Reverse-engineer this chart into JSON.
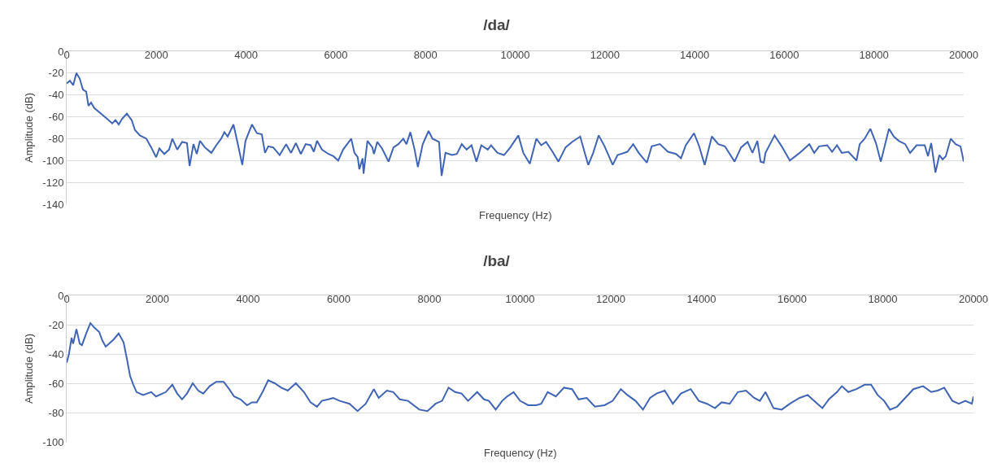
{
  "chart_data": [
    {
      "type": "line",
      "title": "/da/",
      "xlabel": "Frequency (Hz)",
      "ylabel": "Amplitude (dB)",
      "xlim": [
        0,
        20000
      ],
      "xticks": [
        0,
        2000,
        4000,
        6000,
        8000,
        10000,
        12000,
        14000,
        16000,
        18000,
        20000
      ],
      "ylim": [
        -140,
        0
      ],
      "yticks": [
        -140,
        -120,
        -100,
        -80,
        -60,
        -40,
        -20,
        0
      ],
      "grid": "y",
      "marker": "none",
      "line_style": "solid",
      "series": [
        {
          "color": "#3f64b3",
          "x": [
            0,
            72,
            145,
            217,
            290,
            362,
            435,
            486,
            543,
            616,
            761,
            906,
            1015,
            1087,
            1160,
            1232,
            1341,
            1450,
            1522,
            1631,
            1776,
            1885,
            1994,
            2066,
            2175,
            2283,
            2356,
            2465,
            2574,
            2682,
            2740,
            2827,
            2900,
            2972,
            3081,
            3226,
            3335,
            3444,
            3516,
            3589,
            3719,
            3806,
            3915,
            3987,
            4132,
            4241,
            4350,
            4422,
            4495,
            4604,
            4748,
            4893,
            5002,
            5111,
            5220,
            5329,
            5438,
            5510,
            5582,
            5691,
            5836,
            5945,
            6054,
            6163,
            6271,
            6344,
            6416,
            6489,
            6525,
            6597,
            6619,
            6706,
            6815,
            6851,
            6924,
            7032,
            7177,
            7286,
            7395,
            7504,
            7576,
            7663,
            7757,
            7830,
            7939,
            8069,
            8156,
            8301,
            8359,
            8446,
            8591,
            8700,
            8809,
            8917,
            9026,
            9135,
            9244,
            9389,
            9461,
            9606,
            9751,
            9891,
            10072,
            10181,
            10326,
            10471,
            10580,
            10688,
            10833,
            10964,
            11123,
            11268,
            11449,
            11558,
            11630,
            11739,
            11862,
            11993,
            12174,
            12282,
            12500,
            12630,
            12754,
            12935,
            13043,
            13225,
            13406,
            13587,
            13696,
            13804,
            13986,
            14094,
            14225,
            14384,
            14529,
            14674,
            14891,
            15036,
            15181,
            15290,
            15399,
            15471,
            15543,
            15580,
            15783,
            15942,
            16123,
            16341,
            16558,
            16667,
            16775,
            16956,
            17065,
            17174,
            17283,
            17428,
            17609,
            17681,
            17790,
            17920,
            18043,
            18152,
            18333,
            18442,
            18551,
            18696,
            18804,
            18949,
            19130,
            19203,
            19275,
            19370,
            19457,
            19529,
            19601,
            19710,
            19819,
            19928,
            20000
          ],
          "values": [
            -29.5,
            -27,
            -31,
            -20,
            -25,
            -35,
            -37,
            -50,
            -47,
            -52,
            -57,
            -62,
            -66,
            -63,
            -67,
            -62,
            -57,
            -63,
            -72,
            -77,
            -80,
            -88,
            -97,
            -89,
            -94,
            -90,
            -80,
            -90,
            -83,
            -84,
            -105,
            -85,
            -94,
            -82,
            -88,
            -93,
            -86,
            -80,
            -74,
            -78,
            -67,
            -83,
            -104,
            -82,
            -67,
            -75,
            -76,
            -93,
            -87,
            -88,
            -95,
            -85,
            -93,
            -84,
            -94,
            -85,
            -86,
            -92,
            -82,
            -90,
            -94,
            -96,
            -100,
            -90,
            -84,
            -80,
            -93,
            -97,
            -108,
            -98,
            -112,
            -82,
            -88,
            -94,
            -83,
            -89,
            -101,
            -88,
            -85,
            -80,
            -85,
            -74,
            -90,
            -106,
            -85,
            -73,
            -80,
            -83,
            -114,
            -93,
            -95,
            -94,
            -85,
            -90,
            -86,
            -101,
            -86,
            -90,
            -86,
            -93,
            -95,
            -88,
            -77,
            -93,
            -103,
            -80,
            -86,
            -83,
            -92,
            -101,
            -88,
            -83,
            -78,
            -94,
            -104,
            -93,
            -77,
            -87,
            -104,
            -95,
            -92,
            -85,
            -93,
            -102,
            -87,
            -85,
            -92,
            -94,
            -98,
            -86,
            -75,
            -86,
            -104,
            -78,
            -85,
            -87,
            -101,
            -88,
            -83,
            -93,
            -82,
            -101,
            -102,
            -93,
            -77,
            -87,
            -100,
            -93,
            -85,
            -93,
            -87,
            -86,
            -92,
            -86,
            -93,
            -92,
            -100,
            -85,
            -80,
            -71,
            -84,
            -101,
            -71,
            -78,
            -82,
            -85,
            -93,
            -86,
            -86,
            -96,
            -84,
            -111,
            -95,
            -99,
            -96,
            -80,
            -85,
            -87,
            -101
          ]
        }
      ]
    },
    {
      "type": "line",
      "title": "/ba/",
      "xlabel": "Frequency (Hz)",
      "ylabel": "Amplitude (dB)",
      "xlim": [
        0,
        20000
      ],
      "xticks": [
        0,
        2000,
        4000,
        6000,
        8000,
        10000,
        12000,
        14000,
        16000,
        18000,
        20000
      ],
      "ylim": [
        -100,
        0
      ],
      "yticks": [
        -100,
        -80,
        -60,
        -40,
        -20,
        0
      ],
      "grid": "y",
      "marker": "none",
      "line_style": "solid",
      "series": [
        {
          "color": "#3f64b3",
          "x": [
            0,
            50,
            108,
            143,
            215,
            287,
            337,
            430,
            523,
            609,
            717,
            789,
            860,
            932,
            1039,
            1147,
            1254,
            1326,
            1398,
            1470,
            1541,
            1685,
            1864,
            1971,
            2186,
            2330,
            2437,
            2545,
            2652,
            2781,
            2903,
            3011,
            3154,
            3297,
            3462,
            3584,
            3692,
            3835,
            3978,
            4086,
            4194,
            4337,
            4444,
            4588,
            4731,
            4875,
            5054,
            5233,
            5376,
            5520,
            5627,
            5771,
            5878,
            6022,
            6237,
            6416,
            6595,
            6774,
            6882,
            7061,
            7204,
            7348,
            7527,
            7778,
            7957,
            8136,
            8280,
            8423,
            8566,
            8710,
            8853,
            9054,
            9204,
            9312,
            9462,
            9606,
            9713,
            9857,
            10000,
            10179,
            10358,
            10466,
            10609,
            10789,
            10968,
            11147,
            11290,
            11470,
            11649,
            11864,
            12043,
            12222,
            12366,
            12545,
            12710,
            12867,
            13011,
            13190,
            13369,
            13548,
            13763,
            13943,
            14122,
            14301,
            14444,
            14624,
            14803,
            14982,
            15161,
            15290,
            15412,
            15591,
            15771,
            15950,
            16165,
            16344,
            16523,
            16667,
            16810,
            16989,
            17097,
            17240,
            17419,
            17599,
            17742,
            17885,
            18029,
            18158,
            18315,
            18495,
            18674,
            18889,
            19068,
            19211,
            19355,
            19534,
            19677,
            19821,
            19964,
            20000
          ],
          "values": [
            -46,
            -40,
            -29,
            -33,
            -23,
            -33,
            -34,
            -26,
            -19,
            -22,
            -25,
            -31,
            -35,
            -33,
            -30,
            -26,
            -32,
            -43,
            -55,
            -61,
            -66,
            -68,
            -66,
            -69,
            -66,
            -61,
            -67,
            -71,
            -67,
            -60,
            -65,
            -67,
            -62,
            -59,
            -59,
            -64,
            -69,
            -71,
            -75,
            -73,
            -73,
            -65,
            -58,
            -60,
            -63,
            -65,
            -60,
            -66,
            -73,
            -76,
            -72,
            -71,
            -70,
            -72,
            -74,
            -79,
            -74,
            -64,
            -70,
            -65,
            -66,
            -71,
            -72,
            -78,
            -79,
            -74,
            -72,
            -63,
            -66,
            -67,
            -72,
            -66,
            -71,
            -72,
            -78,
            -72,
            -69,
            -66,
            -72,
            -75,
            -75,
            -74,
            -66,
            -69,
            -63,
            -64,
            -71,
            -70,
            -76,
            -75,
            -72,
            -64,
            -68,
            -72,
            -78,
            -70,
            -67,
            -65,
            -74,
            -67,
            -64,
            -72,
            -74,
            -77,
            -73,
            -74,
            -66,
            -65,
            -70,
            -72,
            -66,
            -77,
            -78,
            -74,
            -70,
            -68,
            -73,
            -77,
            -71,
            -66,
            -62,
            -66,
            -64,
            -61,
            -61,
            -68,
            -72,
            -78,
            -76,
            -70,
            -64,
            -62,
            -66,
            -65,
            -63,
            -72,
            -74,
            -72,
            -74,
            -69
          ]
        }
      ]
    }
  ]
}
